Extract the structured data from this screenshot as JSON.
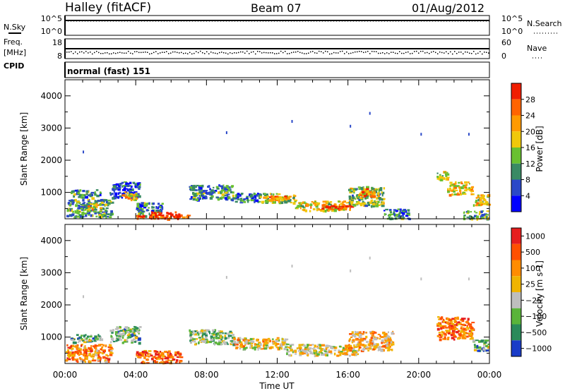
{
  "header": {
    "station": "Halley (fitACF)",
    "beam": "Beam 07",
    "date": "01/Aug/2012"
  },
  "panels": {
    "nsky_label": "N.Sky",
    "nsearch_label": "N.Search",
    "nsky_ticks": [
      "10^5",
      "10^0"
    ],
    "nsearch_ticks": [
      "10^5",
      "10^0"
    ],
    "freq_label_line1": "Freq.",
    "freq_label_line2": "[MHz]",
    "freq_ticks": [
      "18",
      "8"
    ],
    "nave_label": "Nave",
    "nave_ticks": [
      "60",
      "0"
    ],
    "cpid_label": "CPID",
    "cpid_text": "normal (fast) 151"
  },
  "colors": {
    "power_scale": [
      "#0000ff",
      "#2a48c8",
      "#3a8a64",
      "#69c030",
      "#f0c80a",
      "#ff9a00",
      "#ff6400",
      "#f01e00"
    ],
    "velocity_scale": [
      "#1a3cc8",
      "#2a8a5a",
      "#5ab43a",
      "#bebebe",
      "#f0b400",
      "#ff8c00",
      "#ff5000",
      "#e61e1e"
    ]
  },
  "chart_data": [
    {
      "type": "heatmap",
      "name": "power",
      "xlabel": "Time UT",
      "ylabel": "Slant Range [km]",
      "xlim": [
        0,
        24
      ],
      "ylim": [
        180,
        4500
      ],
      "x_ticks": [
        "00:00",
        "04:00",
        "08:00",
        "12:00",
        "16:00",
        "20:00",
        "00:00"
      ],
      "x_tick_values": [
        0,
        4,
        8,
        12,
        16,
        20,
        24
      ],
      "y_ticks": [
        1000,
        2000,
        3000,
        4000
      ],
      "colorbar": {
        "label": "Power [dB]",
        "ticks": [
          4,
          8,
          12,
          16,
          20,
          24,
          28
        ],
        "range": [
          0,
          30
        ]
      },
      "regions": [
        {
          "t0": 0.0,
          "t1": 2.6,
          "r0": 250,
          "r1": 800,
          "level": 0.35
        },
        {
          "t0": 0.3,
          "t1": 2.0,
          "r0": 850,
          "r1": 1100,
          "level": 0.3
        },
        {
          "t0": 1.2,
          "t1": 2.0,
          "r0": 500,
          "r1": 700,
          "level": 0.6
        },
        {
          "t0": 2.5,
          "t1": 4.2,
          "r0": 850,
          "r1": 1350,
          "level": 0.2
        },
        {
          "t0": 3.2,
          "t1": 4.0,
          "r0": 800,
          "r1": 1050,
          "level": 0.6
        },
        {
          "t0": 4.0,
          "t1": 5.5,
          "r0": 280,
          "r1": 700,
          "level": 0.3
        },
        {
          "t0": 4.0,
          "t1": 7.0,
          "r0": 200,
          "r1": 320,
          "level": 0.85
        },
        {
          "t0": 4.8,
          "t1": 6.5,
          "r0": 250,
          "r1": 420,
          "level": 0.95
        },
        {
          "t0": 7.0,
          "t1": 9.5,
          "r0": 800,
          "r1": 1250,
          "level": 0.3
        },
        {
          "t0": 9.5,
          "t1": 11.0,
          "r0": 700,
          "r1": 1000,
          "level": 0.25
        },
        {
          "t0": 11.0,
          "t1": 13.0,
          "r0": 700,
          "r1": 1000,
          "level": 0.5
        },
        {
          "t0": 11.5,
          "t1": 12.5,
          "r0": 780,
          "r1": 920,
          "level": 0.75
        },
        {
          "t0": 13.0,
          "t1": 16.0,
          "r0": 450,
          "r1": 750,
          "level": 0.55
        },
        {
          "t0": 14.5,
          "t1": 16.2,
          "r0": 500,
          "r1": 650,
          "level": 0.95
        },
        {
          "t0": 16.0,
          "t1": 18.0,
          "r0": 600,
          "r1": 1200,
          "level": 0.45
        },
        {
          "t0": 16.5,
          "t1": 17.5,
          "r0": 900,
          "r1": 1150,
          "level": 0.7
        },
        {
          "t0": 18.0,
          "t1": 19.5,
          "r0": 200,
          "r1": 500,
          "level": 0.3
        },
        {
          "t0": 21.0,
          "t1": 21.6,
          "r0": 1400,
          "r1": 1700,
          "level": 0.5
        },
        {
          "t0": 21.6,
          "t1": 23.0,
          "r0": 950,
          "r1": 1350,
          "level": 0.6
        },
        {
          "t0": 23.0,
          "t1": 23.9,
          "r0": 600,
          "r1": 950,
          "level": 0.55
        },
        {
          "t0": 22.5,
          "t1": 23.9,
          "r0": 200,
          "r1": 450,
          "level": 0.4
        }
      ]
    },
    {
      "type": "heatmap",
      "name": "velocity",
      "xlabel": "Time UT",
      "ylabel": "Slant Range [km]",
      "xlim": [
        0,
        24
      ],
      "ylim": [
        180,
        4500
      ],
      "x_ticks": [
        "00:00",
        "04:00",
        "08:00",
        "12:00",
        "16:00",
        "20:00",
        "00:00"
      ],
      "x_tick_values": [
        0,
        4,
        8,
        12,
        16,
        20,
        24
      ],
      "y_ticks": [
        1000,
        2000,
        3000,
        4000
      ],
      "colorbar": {
        "label": "Velocity [m s-1]",
        "ticks": [
          "1000",
          "500",
          "100",
          "25",
          "−25",
          "−100",
          "−500",
          "−1000"
        ]
      },
      "regions": [
        {
          "t0": 0.0,
          "t1": 2.6,
          "r0": 250,
          "r1": 800,
          "level": 0.7
        },
        {
          "t0": 0.3,
          "t1": 2.0,
          "r0": 850,
          "r1": 1100,
          "level": 0.3
        },
        {
          "t0": 2.5,
          "t1": 4.2,
          "r0": 850,
          "r1": 1350,
          "level": 0.3
        },
        {
          "t0": 4.0,
          "t1": 6.5,
          "r0": 220,
          "r1": 600,
          "level": 0.8
        },
        {
          "t0": 7.0,
          "t1": 9.5,
          "r0": 800,
          "r1": 1250,
          "level": 0.35
        },
        {
          "t0": 9.5,
          "t1": 12.5,
          "r0": 650,
          "r1": 1000,
          "level": 0.55
        },
        {
          "t0": 12.5,
          "t1": 16.5,
          "r0": 450,
          "r1": 800,
          "level": 0.5
        },
        {
          "t0": 16.0,
          "t1": 18.5,
          "r0": 600,
          "r1": 1200,
          "level": 0.6
        },
        {
          "t0": 21.0,
          "t1": 23.0,
          "r0": 950,
          "r1": 1650,
          "level": 0.75
        },
        {
          "t0": 23.0,
          "t1": 23.9,
          "r0": 600,
          "r1": 950,
          "level": 0.3
        }
      ]
    }
  ]
}
